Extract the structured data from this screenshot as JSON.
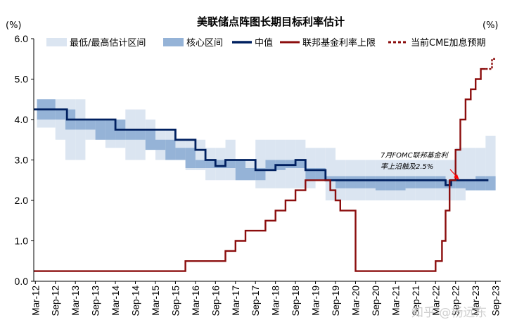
{
  "chart_data": {
    "type": "step-line-with-ranges",
    "title": "美联储点阵图长期目标利率估计",
    "left_unit": "(%)",
    "right_unit": "(%)",
    "ylim": [
      0,
      6
    ],
    "yticks": [
      "0.0",
      "1.0",
      "2.0",
      "3.0",
      "4.0",
      "5.0",
      "6.0"
    ],
    "xlim": [
      2012.17,
      2023.84
    ],
    "xticks": [
      "Mar-12",
      "Sep-12",
      "Mar-13",
      "Sep-13",
      "Mar-14",
      "Sep-14",
      "Mar-15",
      "Sep-15",
      "Mar-16",
      "Sep-16",
      "Mar-17",
      "Sep-17",
      "Mar-18",
      "Sep-18",
      "Mar-19",
      "Sep-19",
      "Mar-20",
      "Sep-20",
      "Mar-21",
      "Sep-21",
      "Mar-22",
      "Sep-22",
      "Mar-23",
      "Sep-23"
    ],
    "legend": [
      "最低/最高估计区间",
      "核心区间",
      "中值",
      "联邦基金利率上限",
      "当前CME加息预期"
    ],
    "colors": {
      "range": "#dbe5f1",
      "core": "#95b3d7",
      "median": "#002060",
      "ffr": "#8b0d0d",
      "cme": "#8b0d0d"
    },
    "annotation": {
      "line1": "7月FOMC联邦基金利",
      "line2": "率上沿触及2.5%"
    },
    "watermark": "知乎 @杨远东",
    "meetings": [
      2012.25,
      2012.71,
      2012.96,
      2013.21,
      2013.46,
      2013.71,
      2013.96,
      2014.21,
      2014.46,
      2014.71,
      2014.96,
      2015.21,
      2015.46,
      2015.71,
      2015.96,
      2016.21,
      2016.46,
      2016.71,
      2016.96,
      2017.21,
      2017.46,
      2017.71,
      2017.96,
      2018.21,
      2018.46,
      2018.71,
      2018.96,
      2019.21,
      2019.46,
      2019.71,
      2019.96,
      2020.46,
      2020.71,
      2020.96,
      2021.21,
      2021.46,
      2021.71,
      2021.96,
      2022.21,
      2022.46,
      2022.71,
      2022.96,
      2023.21,
      2023.46
    ],
    "range_low": [
      3.8,
      3.5,
      3.0,
      3.0,
      3.5,
      3.5,
      3.3,
      3.3,
      3.0,
      3.0,
      3.3,
      3.0,
      3.0,
      3.0,
      2.75,
      2.75,
      2.5,
      2.5,
      2.5,
      2.5,
      2.5,
      2.3,
      2.3,
      2.3,
      2.3,
      2.3,
      2.3,
      2.5,
      2.0,
      2.0,
      2.0,
      2.0,
      2.0,
      2.0,
      2.0,
      2.0,
      2.0,
      2.0,
      2.0,
      2.0,
      2.0,
      2.25,
      2.25,
      2.25
    ],
    "range_high": [
      4.5,
      4.5,
      4.5,
      4.5,
      4.0,
      4.0,
      4.0,
      4.0,
      4.25,
      4.25,
      4.0,
      3.75,
      3.75,
      3.5,
      3.5,
      3.5,
      3.3,
      3.3,
      3.5,
      3.0,
      3.0,
      3.5,
      3.5,
      3.5,
      3.5,
      3.5,
      3.3,
      3.3,
      3.3,
      3.0,
      3.0,
      3.0,
      3.0,
      3.0,
      3.0,
      3.0,
      3.0,
      3.0,
      3.0,
      3.0,
      3.3,
      3.3,
      3.3,
      3.6
    ],
    "core_low": [
      4.0,
      4.0,
      3.75,
      3.75,
      3.75,
      3.5,
      3.5,
      3.5,
      3.5,
      3.5,
      3.25,
      3.25,
      3.0,
      3.0,
      2.8,
      2.8,
      2.8,
      2.8,
      2.8,
      2.5,
      2.5,
      2.5,
      2.75,
      2.75,
      2.8,
      2.8,
      2.5,
      2.5,
      2.5,
      2.3,
      2.3,
      2.3,
      2.25,
      2.25,
      2.25,
      2.3,
      2.3,
      2.3,
      2.3,
      2.3,
      2.3,
      2.25,
      2.25,
      2.25
    ],
    "core_high": [
      4.5,
      4.25,
      4.25,
      4.0,
      4.0,
      4.0,
      4.0,
      4.0,
      3.75,
      3.75,
      3.75,
      3.5,
      3.5,
      3.3,
      3.3,
      3.0,
      3.0,
      3.0,
      3.0,
      3.0,
      2.8,
      2.8,
      3.0,
      3.0,
      3.0,
      3.0,
      2.8,
      2.8,
      2.6,
      2.6,
      2.6,
      2.6,
      2.6,
      2.6,
      2.6,
      2.6,
      2.6,
      2.6,
      2.6,
      2.5,
      2.5,
      2.5,
      2.6,
      2.6
    ],
    "median_x": [
      2012.17,
      2012.7,
      2013.0,
      2013.21,
      2013.96,
      2014.21,
      2014.71,
      2015.0,
      2015.46,
      2015.71,
      2016.0,
      2016.21,
      2016.46,
      2016.71,
      2016.96,
      2017.21,
      2017.46,
      2017.71,
      2017.96,
      2018.21,
      2018.46,
      2018.71,
      2018.96,
      2019.21,
      2019.46,
      2019.71,
      2019.96,
      2020.46,
      2020.71,
      2020.96,
      2021.21,
      2021.46,
      2021.71,
      2021.96,
      2022.21,
      2022.46,
      2022.6,
      2022.71,
      2022.96,
      2023.21,
      2023.46,
      2023.53
    ],
    "median_y": [
      4.25,
      4.25,
      4.0,
      4.0,
      4.0,
      3.75,
      3.75,
      3.75,
      3.75,
      3.5,
      3.5,
      3.25,
      3.0,
      2.85,
      3.0,
      3.0,
      3.0,
      2.75,
      2.75,
      2.875,
      2.875,
      3.0,
      2.75,
      2.75,
      2.5,
      2.5,
      2.5,
      2.5,
      2.5,
      2.5,
      2.5,
      2.5,
      2.5,
      2.5,
      2.5,
      2.375,
      2.5,
      2.5,
      2.5,
      2.5,
      2.5,
      2.5
    ],
    "ffr_x": [
      2012.17,
      2015.96,
      2016.96,
      2017.21,
      2017.46,
      2017.96,
      2018.21,
      2018.46,
      2018.71,
      2018.96,
      2019.58,
      2019.71,
      2019.83,
      2020.17,
      2020.21,
      2022.21,
      2022.37,
      2022.46,
      2022.56,
      2022.71,
      2022.83,
      2022.96,
      2023.09,
      2023.21,
      2023.34,
      2023.46
    ],
    "ffr_y": [
      0.25,
      0.5,
      0.75,
      1.0,
      1.25,
      1.5,
      1.75,
      2.0,
      2.25,
      2.5,
      2.25,
      2.0,
      1.75,
      1.75,
      0.25,
      0.5,
      1.0,
      1.75,
      2.5,
      3.25,
      4.0,
      4.5,
      4.75,
      5.0,
      5.25,
      5.25
    ],
    "cme_x": [
      2023.46,
      2023.58,
      2023.62,
      2023.7
    ],
    "cme_y": [
      5.25,
      5.25,
      5.5,
      5.5
    ]
  }
}
